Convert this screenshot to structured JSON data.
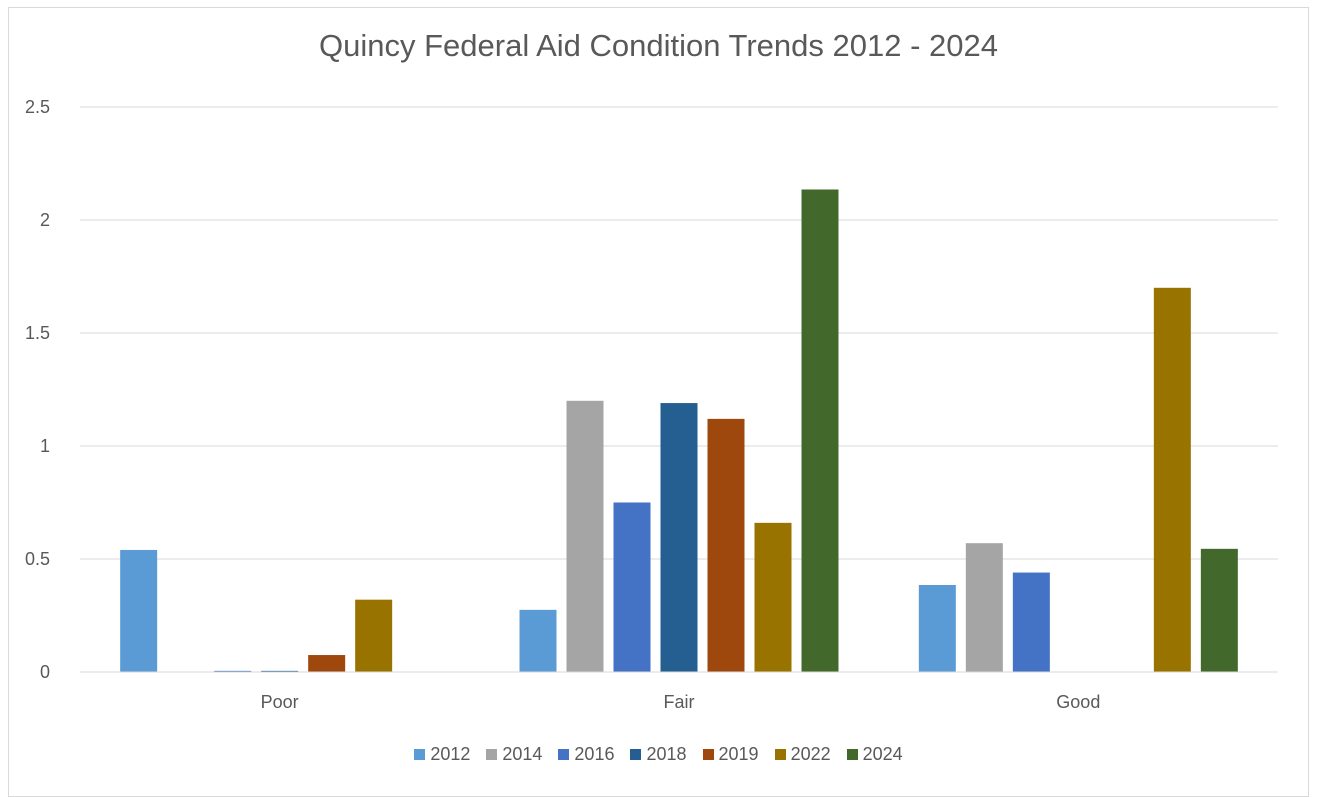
{
  "chart_data": {
    "type": "bar",
    "title": "Quincy Federal Aid Condition Trends 2012 - 2024",
    "xlabel": "",
    "ylabel": "",
    "categories": [
      "Poor",
      "Fair",
      "Good"
    ],
    "ylim": [
      0,
      2.5
    ],
    "yticks": [
      "0",
      "0.5",
      "1",
      "1.5",
      "2",
      "2.5"
    ],
    "grid": true,
    "legend_position": "bottom",
    "series": [
      {
        "name": "2012",
        "color": "#5b9bd5",
        "values": [
          0.54,
          0.275,
          0.385
        ]
      },
      {
        "name": "2014",
        "color": "#a5a5a5",
        "values": [
          0,
          1.2,
          0.57
        ]
      },
      {
        "name": "2016",
        "color": "#4472c4",
        "values": [
          0.005,
          0.75,
          0.44
        ]
      },
      {
        "name": "2018",
        "color": "#255e91",
        "values": [
          0.005,
          1.19,
          0
        ]
      },
      {
        "name": "2019",
        "color": "#9e480e",
        "values": [
          0.075,
          1.12,
          0
        ]
      },
      {
        "name": "2022",
        "color": "#997300",
        "values": [
          0.32,
          0.66,
          1.7
        ]
      },
      {
        "name": "2024",
        "color": "#43682b",
        "values": [
          0,
          2.135,
          0.545
        ]
      }
    ]
  }
}
